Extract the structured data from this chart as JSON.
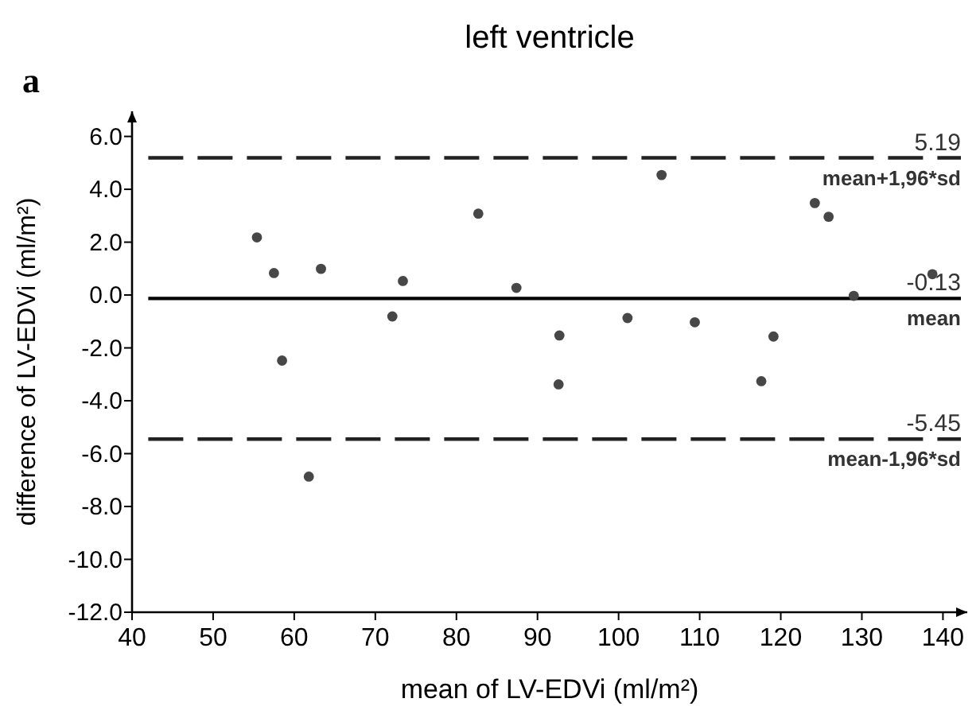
{
  "chart_data": {
    "type": "scatter",
    "title": "left ventricle",
    "xlabel": "mean of LV-EDVi (ml/m²)",
    "ylabel": "difference of LV-EDVi (ml/m²)",
    "x": [
      55.4,
      57.5,
      58.5,
      61.8,
      63.3,
      72.1,
      73.4,
      82.7,
      87.4,
      92.7,
      92.6,
      101.1,
      105.3,
      109.4,
      117.6,
      119.1,
      124.2,
      125.9,
      129.0,
      138.7
    ],
    "series": [
      {
        "color": "#474747",
        "values": [
          2.18,
          0.83,
          -2.48,
          -6.87,
          0.99,
          -0.81,
          0.53,
          3.08,
          0.27,
          -1.53,
          -3.38,
          -0.87,
          4.54,
          -1.03,
          -3.26,
          -1.57,
          3.48,
          2.96,
          -0.03,
          0.79
        ]
      }
    ],
    "marker": "circle",
    "xlim": [
      40,
      143
    ],
    "xticks": [
      40,
      50,
      60,
      70,
      80,
      90,
      100,
      110,
      120,
      130,
      140
    ],
    "ylim": [
      -12,
      6.95
    ],
    "yticks": [
      {
        "value": 6,
        "label": "6.0"
      },
      {
        "value": 4,
        "label": "4.0"
      },
      {
        "value": 2,
        "label": "2.0"
      },
      {
        "value": 0,
        "label": "0.0"
      },
      {
        "value": -2,
        "label": "-2.0"
      },
      {
        "value": -4,
        "label": "-4.0"
      },
      {
        "value": -6,
        "label": "-6.0"
      },
      {
        "value": -8,
        "label": "-8.0"
      },
      {
        "value": -10,
        "label": "-10.0"
      },
      {
        "value": -12,
        "label": "-12.0"
      }
    ],
    "ref_lines": [
      {
        "axis": "y",
        "value": 5.19,
        "label": "mean+1,96*sd",
        "line_style": "dashed",
        "color": "#222222"
      },
      {
        "axis": "y",
        "value": -0.13,
        "label": "mean",
        "line_style": "solid",
        "color": "#000000"
      },
      {
        "axis": "y",
        "value": -5.45,
        "label": "mean-1,96*sd",
        "line_style": "dashed",
        "color": "#222222"
      }
    ],
    "annotations": [
      "a",
      {
        "text": "5.19",
        "y": 5.19
      },
      {
        "text": "-0.13",
        "y": -0.13
      },
      {
        "text": "-5.45",
        "y": -5.45
      }
    ],
    "grid": false
  }
}
